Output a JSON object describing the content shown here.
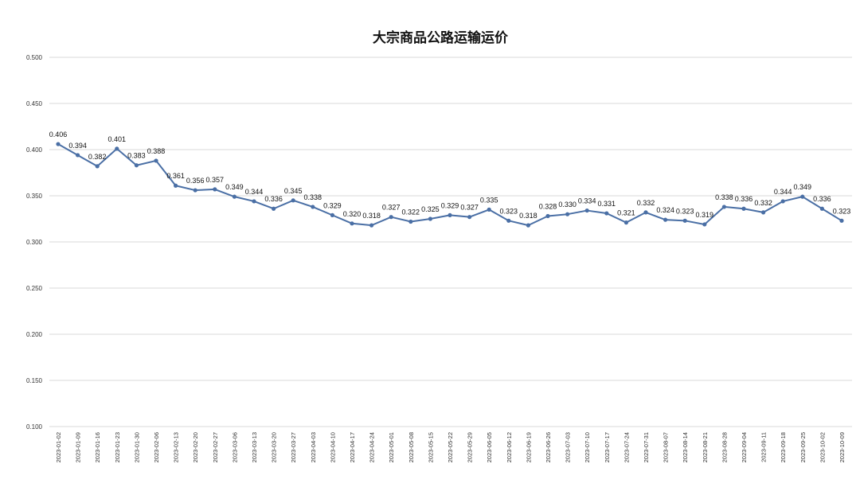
{
  "chart_data": {
    "type": "line",
    "title": "大宗商品公路运输运价",
    "xlabel": "",
    "ylabel": "",
    "ylim": [
      0.1,
      0.5
    ],
    "yticks": [
      "0.100",
      "0.150",
      "0.200",
      "0.250",
      "0.300",
      "0.350",
      "0.400",
      "0.450",
      "0.500"
    ],
    "grid": true,
    "legend": "none",
    "colors": {
      "line": "#4a6fa5",
      "grid": "#d9d9d9"
    },
    "categories": [
      "2023-01-02",
      "2023-01-09",
      "2023-01-16",
      "2023-01-23",
      "2023-01-30",
      "2023-02-06",
      "2023-02-13",
      "2023-02-20",
      "2023-02-27",
      "2023-03-06",
      "2023-03-13",
      "2023-03-20",
      "2023-03-27",
      "2023-04-03",
      "2023-04-10",
      "2023-04-17",
      "2023-04-24",
      "2023-05-01",
      "2023-05-08",
      "2023-05-15",
      "2023-05-22",
      "2023-05-29",
      "2023-06-05",
      "2023-06-12",
      "2023-06-19",
      "2023-06-26",
      "2023-07-03",
      "2023-07-10",
      "2023-07-17",
      "2023-07-24",
      "2023-07-31",
      "2023-08-07",
      "2023-08-14",
      "2023-08-21",
      "2023-08-28",
      "2023-09-04",
      "2023-09-11",
      "2023-09-18",
      "2023-09-25",
      "2023-10-02",
      "2023-10-09"
    ],
    "series": [
      {
        "values": [
          0.406,
          0.394,
          0.382,
          0.401,
          0.383,
          0.388,
          0.361,
          0.356,
          0.357,
          0.349,
          0.344,
          0.336,
          0.345,
          0.338,
          0.329,
          0.32,
          0.318,
          0.327,
          0.322,
          0.325,
          0.329,
          0.327,
          0.335,
          0.323,
          0.318,
          0.328,
          0.33,
          0.334,
          0.331,
          0.321,
          0.332,
          0.324,
          0.323,
          0.319,
          0.338,
          0.336,
          0.332,
          0.344,
          0.349,
          0.336,
          0.323
        ],
        "labels": [
          "0.406",
          "0.394",
          "0.382",
          "0.401",
          "0.383",
          "0.388",
          "0.361",
          "0.356",
          "0.357",
          "0.349",
          "0.344",
          "0.336",
          "0.345",
          "0.338",
          "0.329",
          "0.320",
          "0.318",
          "0.327",
          "0.322",
          "0.325",
          "0.329",
          "0.327",
          "0.335",
          "0.323",
          "0.318",
          "0.328",
          "0.330",
          "0.334",
          "0.331",
          "0.321",
          "0.332",
          "0.324",
          "0.323",
          "0.319",
          "0.338",
          "0.336",
          "0.332",
          "0.344",
          "0.349",
          "0.336",
          "0.323"
        ]
      }
    ]
  }
}
